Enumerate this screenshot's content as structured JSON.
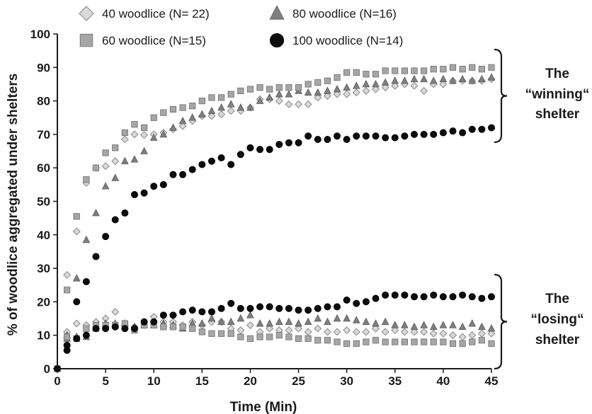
{
  "chart_data": {
    "type": "scatter",
    "title": "",
    "xlabel": "Time (Min)",
    "ylabel": "% of woodlice aggregated under shelters",
    "xlim": [
      0,
      45
    ],
    "ylim": [
      0,
      100
    ],
    "x_ticks": [
      0,
      5,
      10,
      15,
      20,
      25,
      30,
      35,
      40,
      45
    ],
    "y_ticks": [
      0,
      10,
      20,
      30,
      40,
      50,
      60,
      70,
      80,
      90,
      100
    ],
    "grid": false,
    "legend_position": "top",
    "series": [
      {
        "name": "40 woodlice (N= 22)",
        "marker": "diamond",
        "fill": "#d9d9d9",
        "stroke": "#7f7f7f",
        "groups": [
          {
            "label": "winning",
            "x": [
              0,
              1,
              2,
              3,
              4,
              5,
              6,
              7,
              8,
              9,
              10,
              11,
              12,
              13,
              14,
              15,
              16,
              17,
              18,
              19,
              20,
              21,
              22,
              23,
              24,
              25,
              26,
              27,
              28,
              29,
              30,
              31,
              32,
              33,
              34,
              35,
              36,
              37,
              38,
              39,
              40,
              41,
              42,
              43,
              44,
              45
            ],
            "y": [
              0,
              28,
              41,
              55.5,
              60,
              60.5,
              62,
              68.5,
              70,
              69.8,
              70,
              70.5,
              71.5,
              72.5,
              74,
              75.5,
              75.5,
              76,
              77,
              77,
              78,
              80.5,
              80.5,
              80,
              79,
              79,
              79,
              81,
              81.5,
              82,
              82,
              82.5,
              83,
              83.5,
              84,
              84.5,
              85,
              84.5,
              83,
              85,
              85,
              86,
              86,
              86,
              86,
              86.5
            ]
          },
          {
            "label": "losing",
            "x": [
              1,
              2,
              3,
              4,
              5,
              6,
              7,
              8,
              9,
              10,
              11,
              12,
              13,
              14,
              15,
              16,
              17,
              18,
              19,
              20,
              21,
              22,
              23,
              24,
              25,
              26,
              27,
              28,
              29,
              30,
              31,
              32,
              33,
              34,
              35,
              36,
              37,
              38,
              39,
              40,
              41,
              42,
              43,
              44,
              45
            ],
            "y": [
              11,
              13.5,
              13,
              14,
              15,
              17,
              13,
              12.5,
              13,
              15.5,
              14,
              14,
              13,
              14,
              13,
              14,
              14,
              12,
              11.5,
              13,
              11,
              12,
              11.5,
              11.5,
              12,
              11,
              12,
              11,
              11,
              11.5,
              11,
              11,
              12,
              11,
              11.5,
              11,
              11,
              11,
              10.5,
              10.5,
              10,
              9.5,
              10,
              10.5,
              10.5
            ]
          }
        ]
      },
      {
        "name": "80 woodlice (N=16)",
        "marker": "triangle",
        "fill": "#7f7f7f",
        "stroke": "#595959",
        "groups": [
          {
            "label": "winning",
            "x": [
              0,
              1,
              2,
              3,
              4,
              5,
              6,
              7,
              8,
              9,
              10,
              11,
              12,
              13,
              14,
              15,
              16,
              17,
              18,
              19,
              20,
              21,
              22,
              23,
              24,
              25,
              26,
              27,
              28,
              29,
              30,
              31,
              32,
              33,
              34,
              35,
              36,
              37,
              38,
              39,
              40,
              41,
              42,
              43,
              44,
              45
            ],
            "y": [
              0,
              9,
              27,
              38.5,
              46.5,
              54.5,
              57,
              62,
              62.5,
              65,
              69,
              70,
              72,
              74,
              75,
              76,
              77,
              78,
              79,
              78,
              78,
              80,
              81,
              82,
              82,
              83,
              82.5,
              82.5,
              83,
              83.5,
              84,
              84.5,
              85,
              85,
              85.5,
              86,
              86,
              86.5,
              86.5,
              86,
              86.5,
              86,
              86.5,
              86,
              86.5,
              87
            ]
          },
          {
            "label": "losing",
            "x": [
              1,
              2,
              3,
              4,
              5,
              6,
              7,
              8,
              9,
              10,
              11,
              12,
              13,
              14,
              15,
              16,
              17,
              18,
              19,
              20,
              21,
              22,
              23,
              24,
              25,
              26,
              27,
              28,
              29,
              30,
              31,
              32,
              33,
              34,
              35,
              36,
              37,
              38,
              39,
              40,
              41,
              42,
              43,
              44,
              45
            ],
            "y": [
              10,
              9.5,
              9.5,
              12,
              13.5,
              13.5,
              13.5,
              12.5,
              13,
              13,
              13.5,
              13,
              12,
              13.5,
              13.5,
              15,
              14,
              14,
              15,
              16,
              13.5,
              13.5,
              14,
              14,
              13.5,
              14,
              15,
              14,
              15,
              15,
              14.5,
              14,
              13.5,
              14,
              13,
              13,
              12.5,
              13,
              12.5,
              13,
              13,
              12.5,
              13.5,
              12.5,
              12
            ]
          }
        ]
      },
      {
        "name": "60 woodlice (N=15)",
        "marker": "square",
        "fill": "#a6a6a6",
        "stroke": "#6e6e6e",
        "groups": [
          {
            "label": "winning",
            "x": [
              0,
              1,
              2,
              3,
              4,
              5,
              6,
              7,
              8,
              9,
              10,
              11,
              12,
              13,
              14,
              15,
              16,
              17,
              18,
              19,
              20,
              21,
              22,
              23,
              24,
              25,
              26,
              27,
              28,
              29,
              30,
              31,
              32,
              33,
              34,
              35,
              36,
              37,
              38,
              39,
              40,
              41,
              42,
              43,
              44,
              45
            ],
            "y": [
              0,
              23.5,
              45.5,
              56.5,
              60,
              64.5,
              66,
              70.5,
              73,
              72,
              75,
              76.5,
              77.5,
              78,
              78.5,
              80,
              81,
              81,
              82,
              83,
              83.5,
              84,
              83.5,
              84,
              84,
              84,
              85,
              85.5,
              86,
              87,
              88.5,
              88.5,
              88,
              88,
              89,
              89,
              89,
              89,
              89,
              89.5,
              89.5,
              90,
              89.5,
              90,
              89.5,
              90
            ]
          },
          {
            "label": "losing",
            "x": [
              1,
              2,
              3,
              4,
              5,
              6,
              7,
              8,
              9,
              10,
              11,
              12,
              13,
              14,
              15,
              16,
              17,
              18,
              19,
              20,
              21,
              22,
              23,
              24,
              25,
              26,
              27,
              28,
              29,
              30,
              31,
              32,
              33,
              34,
              35,
              36,
              37,
              38,
              39,
              40,
              41,
              42,
              43,
              44,
              45
            ],
            "y": [
              9.5,
              9,
              12,
              13,
              13,
              13,
              13.5,
              11.5,
              13,
              13,
              12.5,
              12.5,
              12.5,
              12,
              11,
              10.5,
              10.5,
              10.5,
              9.5,
              9,
              9.5,
              9.5,
              10,
              9.5,
              9,
              9,
              8.5,
              8.5,
              8,
              7.5,
              7.5,
              8,
              8.5,
              8,
              8,
              8,
              8,
              8,
              8,
              8,
              7.5,
              7.5,
              8,
              8.5,
              7.5
            ]
          }
        ]
      },
      {
        "name": "100 woodlice (N=14)",
        "marker": "circle",
        "fill": "#0d0d0d",
        "stroke": "#000000",
        "groups": [
          {
            "label": "winning",
            "x": [
              0,
              1,
              2,
              3,
              4,
              5,
              6,
              7,
              8,
              9,
              10,
              11,
              12,
              13,
              14,
              15,
              16,
              17,
              18,
              19,
              20,
              21,
              22,
              23,
              24,
              25,
              26,
              27,
              28,
              29,
              30,
              31,
              32,
              33,
              34,
              35,
              36,
              37,
              38,
              39,
              40,
              41,
              42,
              43,
              44,
              45
            ],
            "y": [
              0,
              7,
              20,
              26,
              33.5,
              39.5,
              44.5,
              46.5,
              52,
              52.5,
              54.5,
              55,
              58,
              58,
              59.5,
              61,
              62,
              63,
              61,
              64,
              66,
              65.5,
              65.5,
              67,
              67.5,
              67.5,
              69.5,
              68.5,
              68.5,
              69.5,
              68.5,
              69.5,
              69.5,
              69.5,
              69,
              69,
              69.5,
              70,
              70,
              70,
              70.5,
              71,
              70.5,
              71.5,
              71.5,
              72
            ]
          },
          {
            "label": "losing",
            "x": [
              1,
              2,
              3,
              4,
              5,
              6,
              7,
              8,
              9,
              10,
              11,
              12,
              13,
              14,
              15,
              16,
              17,
              18,
              19,
              20,
              21,
              22,
              23,
              24,
              25,
              26,
              27,
              28,
              29,
              30,
              31,
              32,
              33,
              34,
              35,
              36,
              37,
              38,
              39,
              40,
              41,
              42,
              43,
              44,
              45
            ],
            "y": [
              5.5,
              9,
              10,
              12,
              12,
              12.5,
              12,
              12,
              14,
              14,
              16,
              16,
              17,
              17.5,
              17,
              17,
              18,
              19.5,
              18,
              18,
              18.5,
              18.5,
              18,
              18,
              17.5,
              17.5,
              18,
              18.5,
              18.5,
              20.5,
              19.5,
              20,
              21,
              22,
              22,
              22,
              21.5,
              21.5,
              22,
              21.5,
              21.5,
              22,
              21.5,
              21,
              21.5
            ]
          }
        ]
      }
    ],
    "annotations": [
      {
        "lines": [
          "The",
          "“winning“",
          "shelter"
        ]
      },
      {
        "lines": [
          "The",
          "“losing“",
          "shelter"
        ]
      }
    ]
  }
}
